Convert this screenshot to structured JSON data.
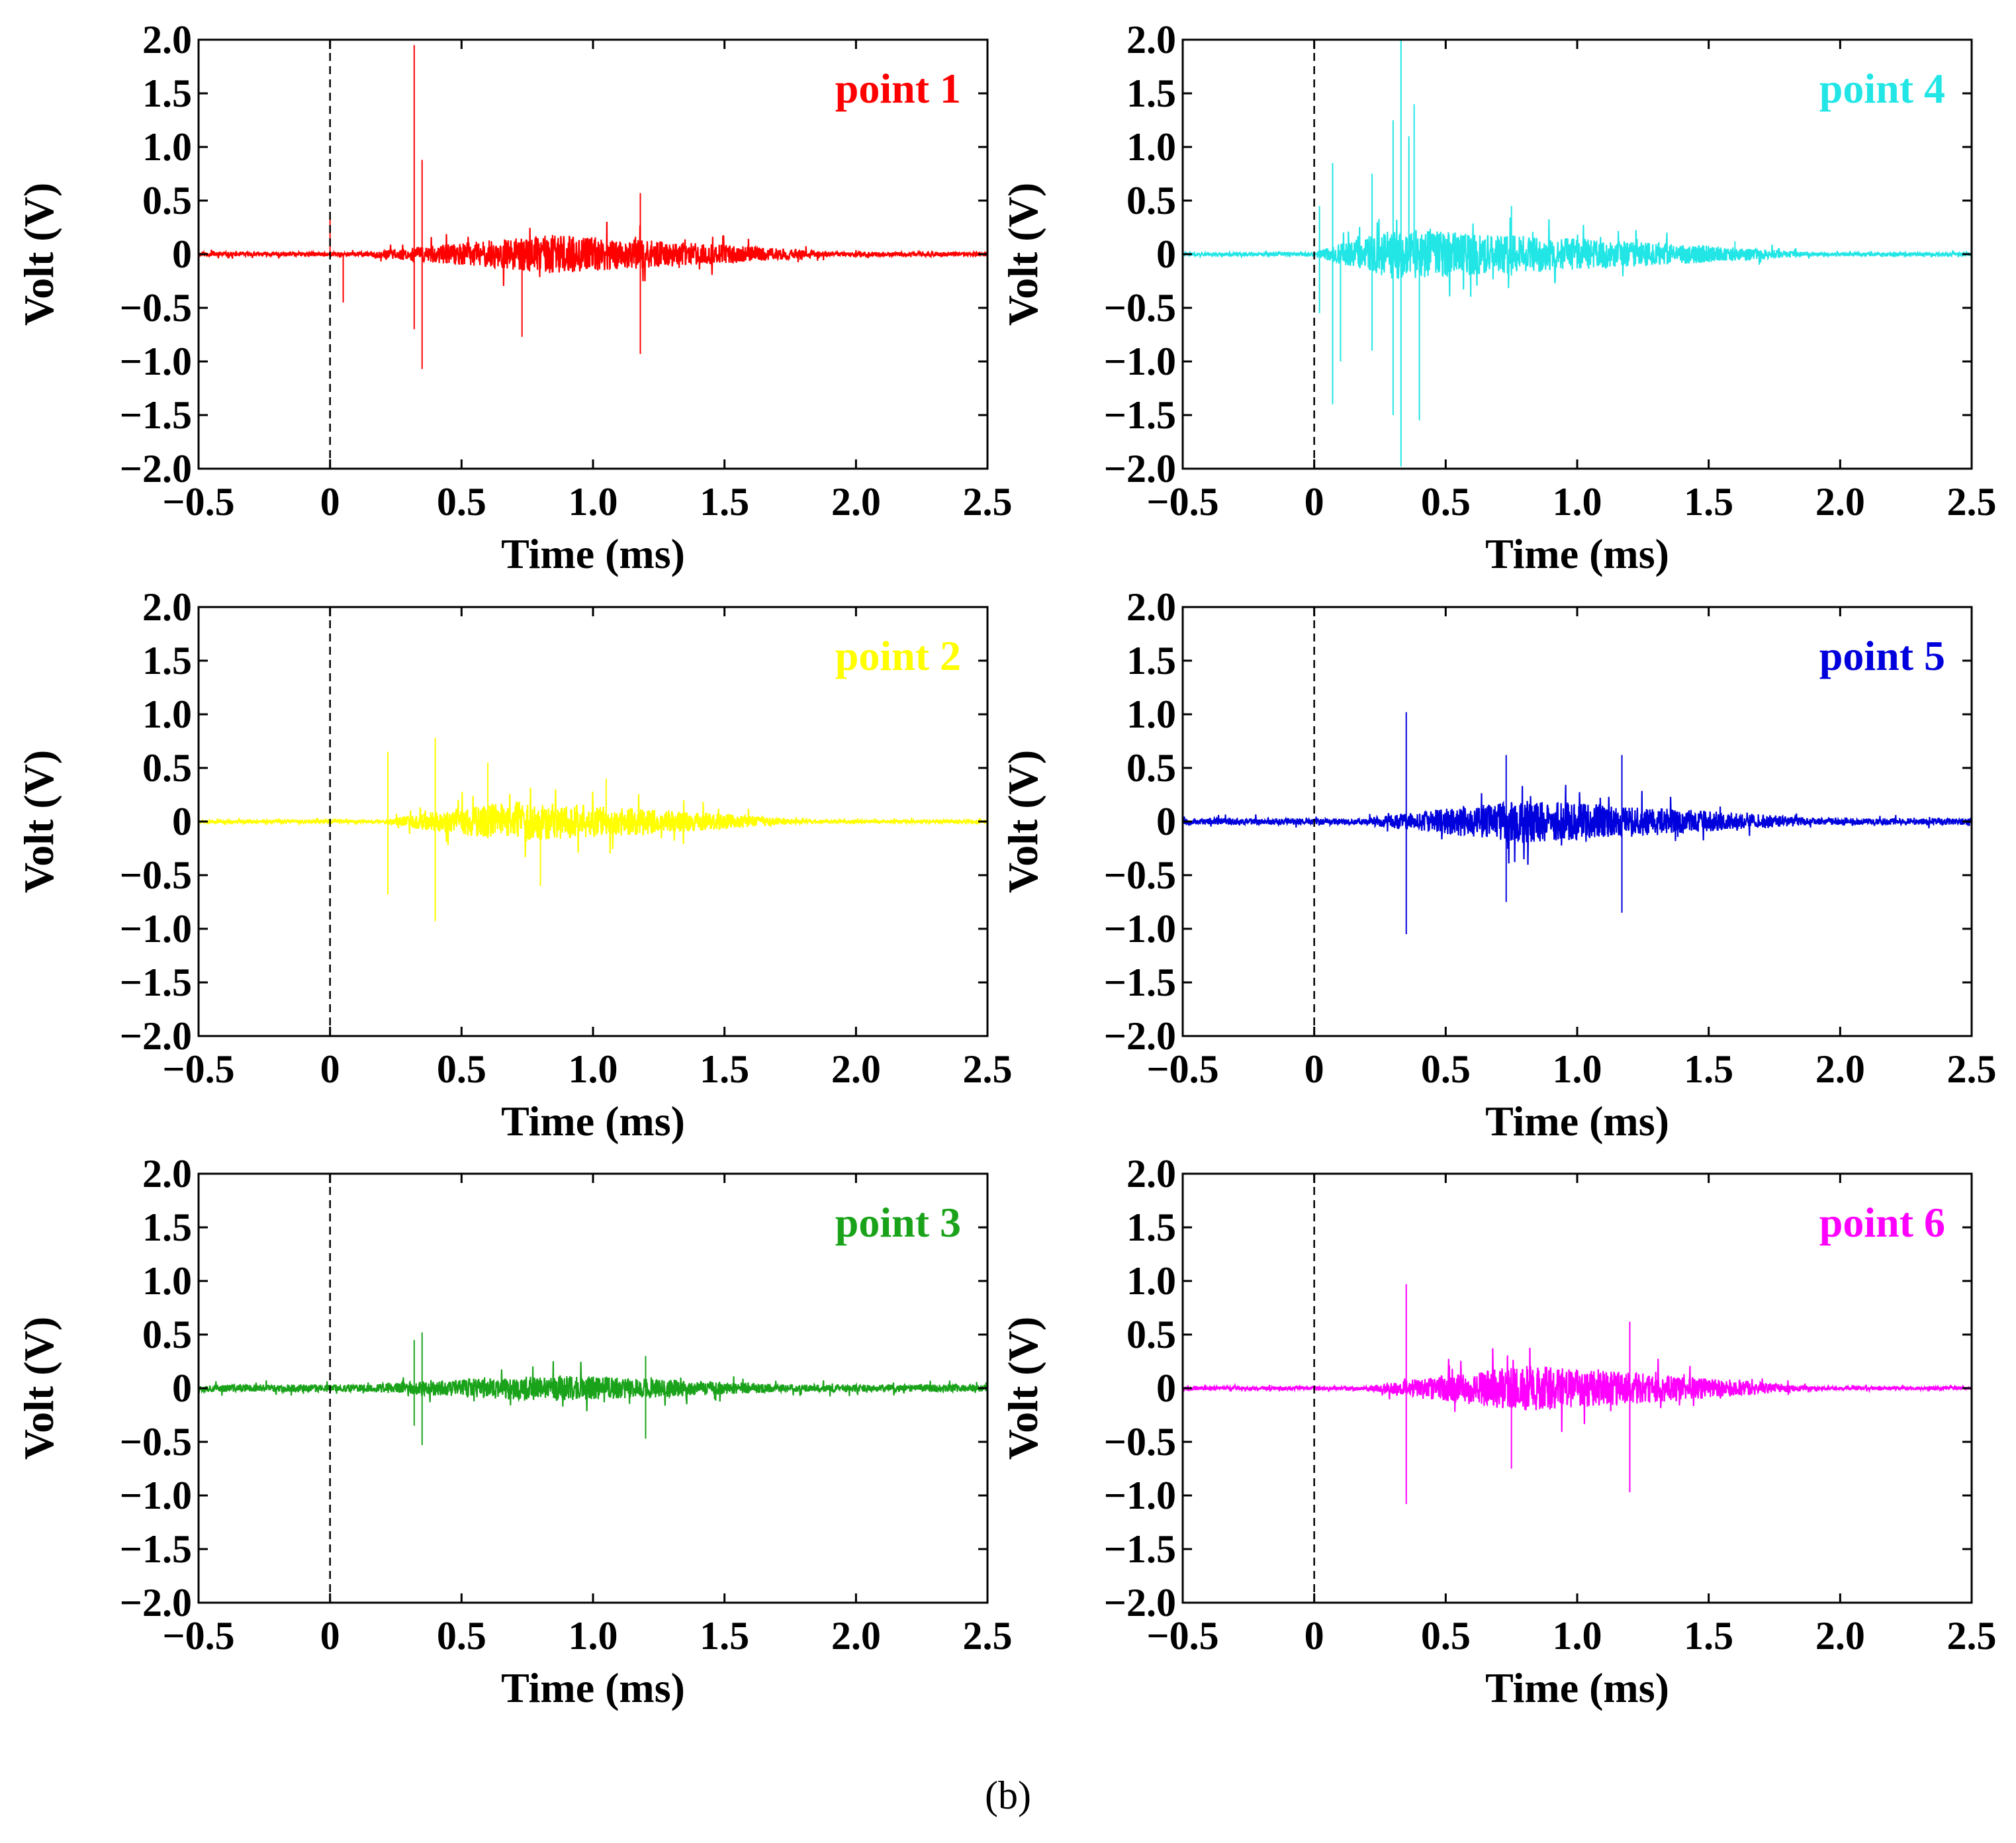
{
  "figure_label": "(b)",
  "chart_data": [
    {
      "type": "line",
      "label": "point 1",
      "color": "#ff0000",
      "xlabel": "Time (ms)",
      "ylabel": "Volt (V)",
      "xlim": [
        -0.5,
        2.5
      ],
      "ylim": [
        -2.0,
        2.0
      ],
      "xticks": [
        -0.5,
        0,
        0.5,
        1.0,
        1.5,
        2.0,
        2.5
      ],
      "xtick_labels": [
        "−0.5",
        "0",
        "0.5",
        "1.0",
        "1.5",
        "2.0",
        "2.5"
      ],
      "yticks": [
        2.0,
        1.5,
        1.0,
        0.5,
        0,
        -0.5,
        -1.0,
        -1.5,
        -2.0
      ],
      "ytick_labels": [
        "2.0",
        "1.5",
        "1.0",
        "0.5",
        "0",
        "−0.5",
        "−1.0",
        "−1.5",
        "−2.0"
      ],
      "trigger_line_x": 0,
      "baseline_noise": 0.02,
      "envelope": {
        "start": 0.15,
        "peak": 0.85,
        "end": 1.9,
        "amp": 0.16
      },
      "spikes": [
        [
          0.0,
          0.35
        ],
        [
          0.05,
          -0.45
        ],
        [
          0.32,
          1.95
        ],
        [
          0.32,
          -0.7
        ],
        [
          0.35,
          0.88
        ],
        [
          0.35,
          -1.07
        ],
        [
          0.73,
          -0.77
        ],
        [
          1.18,
          0.57
        ],
        [
          1.18,
          -0.93
        ]
      ],
      "seed": 11
    },
    {
      "type": "line",
      "label": "point 2",
      "color": "#ffff00",
      "xlabel": "Time (ms)",
      "ylabel": "Volt (V)",
      "xlim": [
        -0.5,
        2.5
      ],
      "ylim": [
        -2.0,
        2.0
      ],
      "xticks": [
        -0.5,
        0,
        0.5,
        1.0,
        1.5,
        2.0,
        2.5
      ],
      "xtick_labels": [
        "−0.5",
        "0",
        "0.5",
        "1.0",
        "1.5",
        "2.0",
        "2.5"
      ],
      "yticks": [
        2.0,
        1.5,
        1.0,
        0.5,
        0,
        -0.5,
        -1.0,
        -1.5,
        -2.0
      ],
      "ytick_labels": [
        "2.0",
        "1.5",
        "1.0",
        "0.5",
        "0",
        "−0.5",
        "−1.0",
        "−1.5",
        "−2.0"
      ],
      "trigger_line_x": 0,
      "baseline_noise": 0.015,
      "envelope": {
        "start": 0.2,
        "peak": 0.7,
        "end": 1.8,
        "amp": 0.18
      },
      "spikes": [
        [
          0.22,
          0.65
        ],
        [
          0.22,
          -0.68
        ],
        [
          0.4,
          0.78
        ],
        [
          0.4,
          -0.93
        ],
        [
          0.6,
          0.55
        ],
        [
          0.8,
          -0.6
        ],
        [
          1.05,
          0.4
        ]
      ],
      "seed": 23
    },
    {
      "type": "line",
      "label": "point 3",
      "color": "#1aa31a",
      "xlabel": "Time (ms)",
      "ylabel": "Volt (V)",
      "xlim": [
        -0.5,
        2.5
      ],
      "ylim": [
        -2.0,
        2.0
      ],
      "xticks": [
        -0.5,
        0,
        0.5,
        1.0,
        1.5,
        2.0,
        2.5
      ],
      "xtick_labels": [
        "−0.5",
        "0",
        "0.5",
        "1.0",
        "1.5",
        "2.0",
        "2.5"
      ],
      "yticks": [
        2.0,
        1.5,
        1.0,
        0.5,
        0,
        -0.5,
        -1.0,
        -1.5,
        -2.0
      ],
      "ytick_labels": [
        "2.0",
        "1.5",
        "1.0",
        "0.5",
        "0",
        "−0.5",
        "−1.0",
        "−1.5",
        "−2.0"
      ],
      "trigger_line_x": 0,
      "baseline_noise": 0.035,
      "envelope": {
        "start": 0.15,
        "peak": 0.85,
        "end": 1.7,
        "amp": 0.09
      },
      "spikes": [
        [
          0.32,
          0.45
        ],
        [
          0.32,
          -0.35
        ],
        [
          0.35,
          0.52
        ],
        [
          0.35,
          -0.53
        ],
        [
          1.2,
          0.3
        ],
        [
          1.2,
          -0.47
        ]
      ],
      "seed": 37
    },
    {
      "type": "line",
      "label": "point 4",
      "color": "#22e6e6",
      "xlabel": "Time (ms)",
      "ylabel": "Volt (V)",
      "xlim": [
        -0.5,
        2.5
      ],
      "ylim": [
        -2.0,
        2.0
      ],
      "xticks": [
        -0.5,
        0,
        0.5,
        1.0,
        1.5,
        2.0,
        2.5
      ],
      "xtick_labels": [
        "−0.5",
        "0",
        "0.5",
        "1.0",
        "1.5",
        "2.0",
        "2.5"
      ],
      "yticks": [
        2.0,
        1.5,
        1.0,
        0.5,
        0,
        -0.5,
        -1.0,
        -1.5,
        -2.0
      ],
      "ytick_labels": [
        "2.0",
        "1.5",
        "1.0",
        "0.5",
        "0",
        "−0.5",
        "−1.0",
        "−1.5",
        "−2.0"
      ],
      "trigger_line_x": 0,
      "baseline_noise": 0.015,
      "envelope": {
        "start": 0.0,
        "peak": 0.3,
        "end": 1.9,
        "amp": 0.22
      },
      "spikes": [
        [
          0.02,
          0.45
        ],
        [
          0.02,
          -0.55
        ],
        [
          0.07,
          0.85
        ],
        [
          0.07,
          -1.4
        ],
        [
          0.1,
          -1.0
        ],
        [
          0.22,
          0.75
        ],
        [
          0.22,
          -0.9
        ],
        [
          0.3,
          1.25
        ],
        [
          0.3,
          -1.5
        ],
        [
          0.33,
          2.0
        ],
        [
          0.33,
          -1.98
        ],
        [
          0.36,
          1.1
        ],
        [
          0.38,
          1.4
        ],
        [
          0.4,
          -1.55
        ],
        [
          0.75,
          0.45
        ],
        [
          0.75,
          -0.2
        ],
        [
          1.6,
          0.12
        ]
      ],
      "seed": 41
    },
    {
      "type": "line",
      "label": "point 5",
      "color": "#0000dd",
      "xlabel": "Time (ms)",
      "ylabel": "Volt (V)",
      "xlim": [
        -0.5,
        2.5
      ],
      "ylim": [
        -2.0,
        2.0
      ],
      "xticks": [
        -0.5,
        0,
        0.5,
        1.0,
        1.5,
        2.0,
        2.5
      ],
      "xtick_labels": [
        "−0.5",
        "0",
        "0.5",
        "1.0",
        "1.5",
        "2.0",
        "2.5"
      ],
      "yticks": [
        2.0,
        1.5,
        1.0,
        0.5,
        0,
        -0.5,
        -1.0,
        -1.5,
        -2.0
      ],
      "ytick_labels": [
        "2.0",
        "1.5",
        "1.0",
        "0.5",
        "0",
        "−0.5",
        "−1.0",
        "−1.5",
        "−2.0"
      ],
      "trigger_line_x": 0,
      "baseline_noise": 0.03,
      "envelope": {
        "start": 0.2,
        "peak": 0.8,
        "end": 1.9,
        "amp": 0.17
      },
      "spikes": [
        [
          0.35,
          1.02
        ],
        [
          0.35,
          -1.05
        ],
        [
          0.73,
          0.62
        ],
        [
          0.73,
          -0.75
        ],
        [
          1.17,
          0.62
        ],
        [
          1.17,
          -0.85
        ]
      ],
      "seed": 53
    },
    {
      "type": "line",
      "label": "point 6",
      "color": "#ff00ff",
      "xlabel": "Time (ms)",
      "ylabel": "Volt (V)",
      "xlim": [
        -0.5,
        2.5
      ],
      "ylim": [
        -2.0,
        2.0
      ],
      "xticks": [
        -0.5,
        0,
        0.5,
        1.0,
        1.5,
        2.0,
        2.5
      ],
      "xtick_labels": [
        "−0.5",
        "0",
        "0.5",
        "1.0",
        "1.5",
        "2.0",
        "2.5"
      ],
      "yticks": [
        2.0,
        1.5,
        1.0,
        0.5,
        0,
        -0.5,
        -1.0,
        -1.5,
        -2.0
      ],
      "ytick_labels": [
        "2.0",
        "1.5",
        "1.0",
        "0.5",
        "0",
        "−0.5",
        "−1.0",
        "−1.5",
        "−2.0"
      ],
      "trigger_line_x": 0,
      "baseline_noise": 0.015,
      "envelope": {
        "start": 0.2,
        "peak": 0.8,
        "end": 1.9,
        "amp": 0.2
      },
      "spikes": [
        [
          0.35,
          0.97
        ],
        [
          0.35,
          -1.08
        ],
        [
          0.75,
          -0.75
        ],
        [
          1.2,
          0.62
        ],
        [
          1.2,
          -0.97
        ]
      ],
      "seed": 67
    }
  ]
}
